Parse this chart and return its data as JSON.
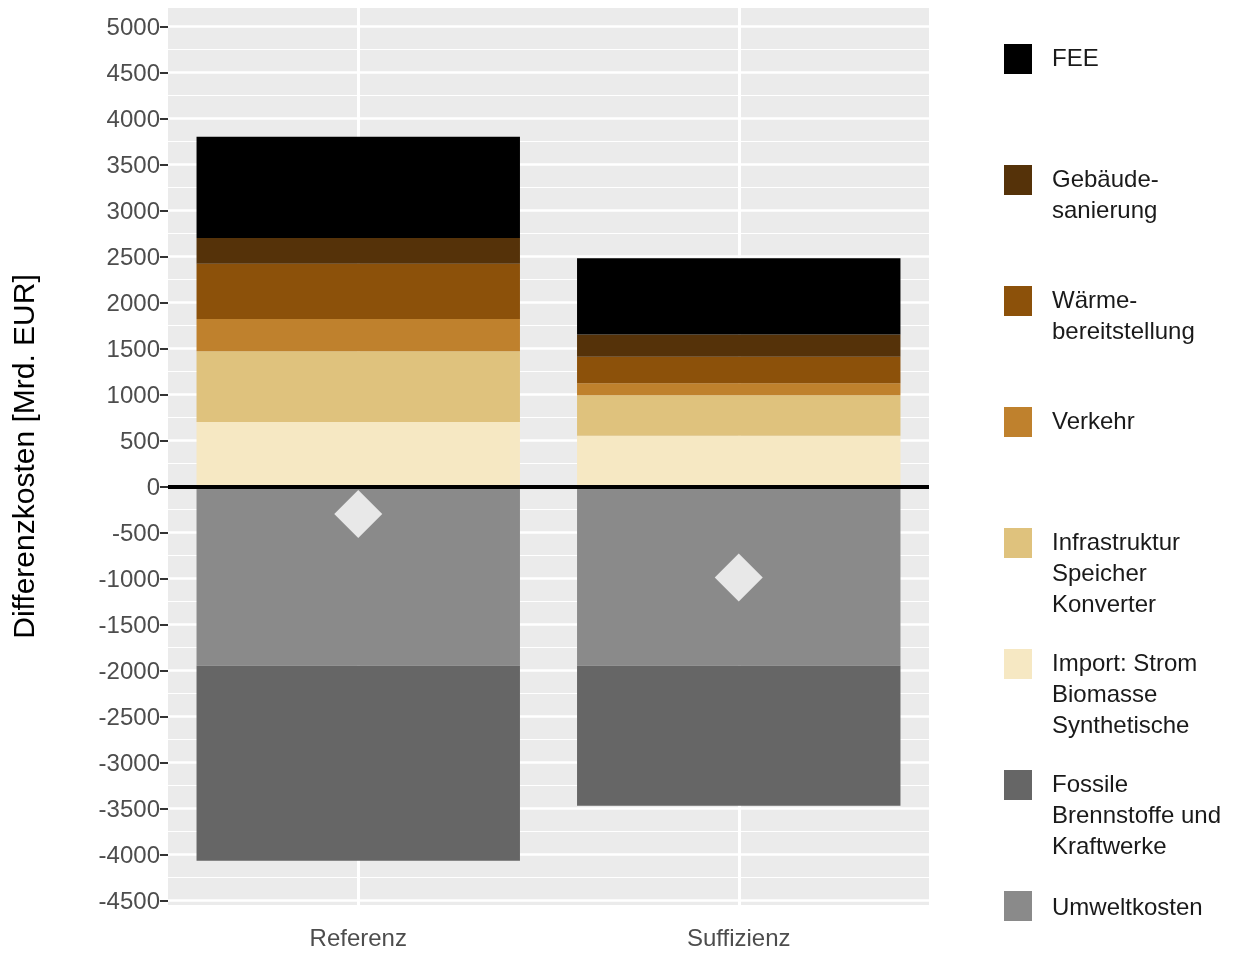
{
  "chart_data": {
    "type": "bar",
    "ylabel": "Differenzkosten [Mrd. EUR]",
    "categories": [
      "Referenz",
      "Suffizienz"
    ],
    "stacked": true,
    "series": [
      {
        "name": "Umweltkosten",
        "color": "#8a8a8a",
        "values": [
          -1950,
          -1950
        ]
      },
      {
        "name": "Fossile\nBrennstoffe und\nKraftwerke",
        "color": "#666666",
        "values": [
          -2120,
          -1520
        ]
      },
      {
        "name": "Import: Strom\nBiomasse\nSynthetische",
        "color": "#f6e8c3",
        "values": [
          700,
          550
        ]
      },
      {
        "name": "Infrastruktur\nSpeicher\nKonverter",
        "color": "#dfc27d",
        "values": [
          770,
          440
        ]
      },
      {
        "name": "Verkehr",
        "color": "#bf812d",
        "values": [
          350,
          130
        ]
      },
      {
        "name": "Wärme-\nbereitstellung",
        "color": "#8c510a",
        "values": [
          600,
          290
        ]
      },
      {
        "name": "Gebäude-\nsanierung",
        "color": "#553209",
        "values": [
          280,
          240
        ]
      },
      {
        "name": "FEE",
        "color": "#000000",
        "values": [
          1100,
          830
        ]
      },
      {
        "type": "scatter",
        "color": "#ffffff",
        "x": [
          "Referenz",
          "Suffizienz"
        ],
        "values": [
          -300,
          -990
        ],
        "marker": "diamond"
      }
    ],
    "ylim": [
      -4550,
      5200
    ],
    "yticks": [
      -4500,
      -4000,
      -3500,
      -3000,
      -2500,
      -2000,
      -1500,
      -1000,
      -500,
      0,
      500,
      1000,
      1500,
      2000,
      2500,
      3000,
      3500,
      4000,
      4500,
      5000
    ],
    "ref_lines": [
      {
        "axis": "y",
        "value": 0,
        "color": "#000000"
      }
    ],
    "grid": true,
    "legend": "right"
  }
}
